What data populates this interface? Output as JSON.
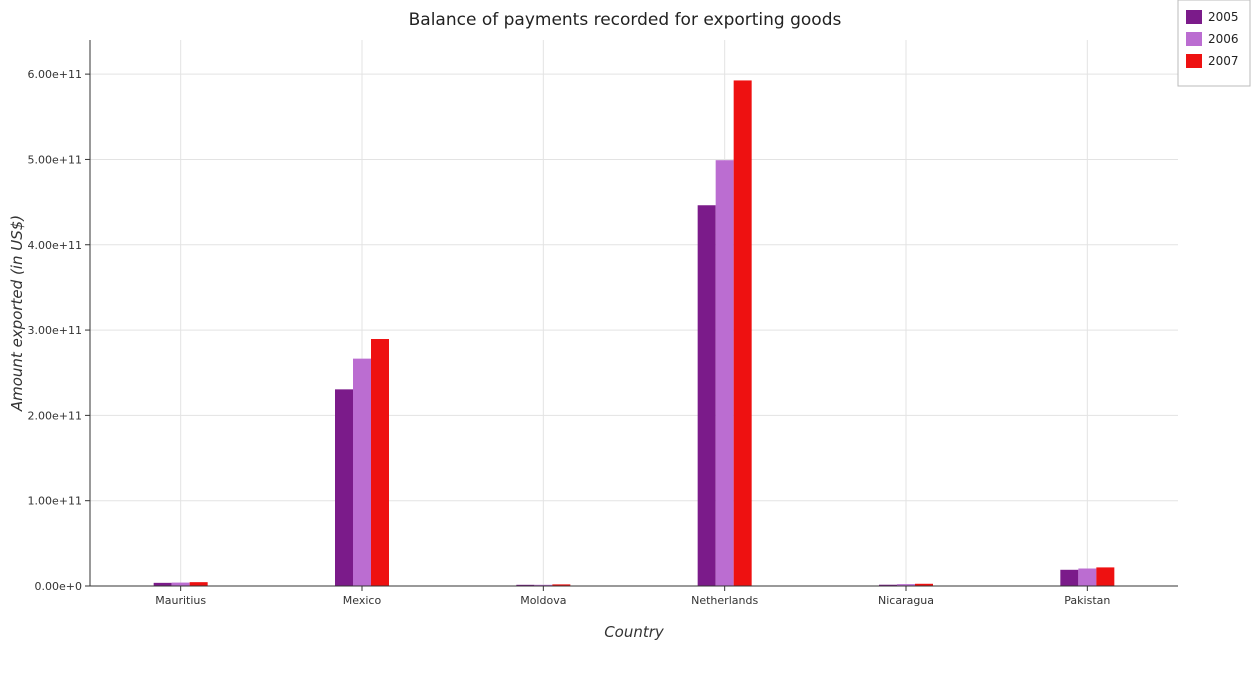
{
  "chart_data": {
    "type": "bar",
    "title": "Balance of payments recorded for exporting goods",
    "xlabel": "Country",
    "ylabel": "Amount exported (in US$)",
    "categories": [
      "Mauritius",
      "Mexico",
      "Moldova",
      "Netherlands",
      "Nicaragua",
      "Pakistan"
    ],
    "series": [
      {
        "name": "2005",
        "color": "#7b1b8a",
        "values": [
          3700000000.0,
          230500000000.0,
          1400000000.0,
          446300000000.0,
          1500000000.0,
          19000000000.0
        ]
      },
      {
        "name": "2006",
        "color": "#bb6dd1",
        "values": [
          4000000000.0,
          266500000000.0,
          1400000000.0,
          499100000000.0,
          2200000000.0,
          20500000000.0
        ]
      },
      {
        "name": "2007",
        "color": "#ee1111",
        "values": [
          4500000000.0,
          289500000000.0,
          1900000000.0,
          592600000000.0,
          2600000000.0,
          21800000000.0
        ]
      }
    ],
    "ylim": [
      0,
      640000000000.0
    ],
    "yticks": [
      0,
      100000000000.0,
      200000000000.0,
      300000000000.0,
      400000000000.0,
      500000000000.0,
      600000000000.0
    ],
    "ytick_labels": [
      "0.00e+0",
      "1.00e+11",
      "2.00e+11",
      "3.00e+11",
      "4.00e+11",
      "5.00e+11",
      "6.00e+11"
    ],
    "grid": true,
    "legend_position": "top-right"
  }
}
